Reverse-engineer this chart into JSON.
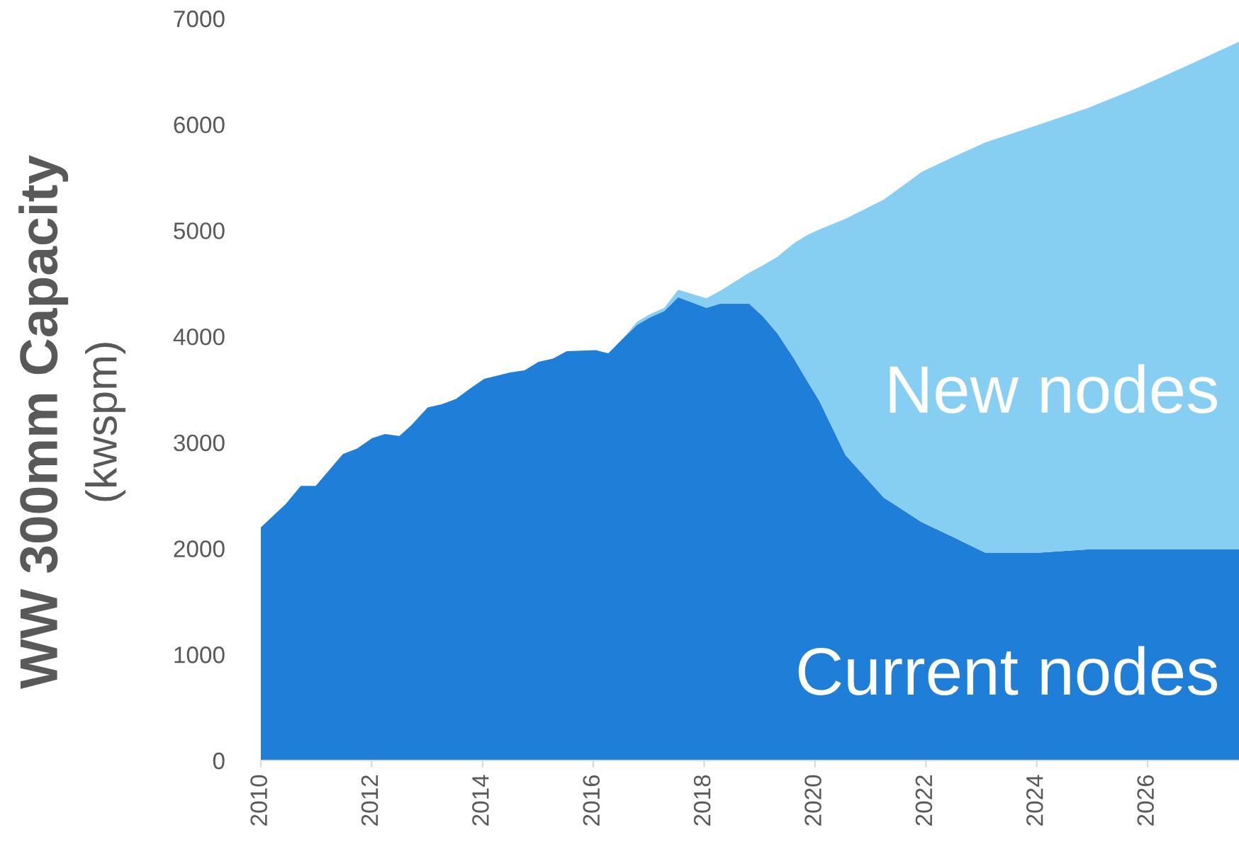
{
  "chart_data": {
    "type": "area",
    "stacked": true,
    "ylabel": "WW 300mm Capacity\n(kwspm)",
    "x": [
      2010.0,
      2010.45,
      2010.72,
      2010.99,
      2011.48,
      2011.73,
      2012.01,
      2012.24,
      2012.5,
      2012.71,
      2013.01,
      2013.26,
      2013.52,
      2013.78,
      2014.03,
      2014.5,
      2014.76,
      2015.01,
      2015.27,
      2015.52,
      2016.04,
      2016.27,
      2016.55,
      2016.79,
      2017.02,
      2017.28,
      2017.53,
      2018.04,
      2018.29,
      2018.81,
      2019.06,
      2019.32,
      2019.62,
      2019.87,
      2020.08,
      2020.55,
      2021.24,
      2021.92,
      2022.52,
      2023.07,
      2024.05,
      2024.9,
      2025.8,
      2026.7,
      2027.65
    ],
    "series": [
      {
        "name": "Current nodes",
        "color": "#1f7ed8",
        "values": [
          2200,
          2420,
          2590,
          2590,
          2890,
          2940,
          3040,
          3080,
          3060,
          3160,
          3330,
          3360,
          3410,
          3510,
          3600,
          3660,
          3680,
          3760,
          3790,
          3860,
          3870,
          3840,
          3990,
          4110,
          4180,
          4240,
          4370,
          4270,
          4310,
          4310,
          4190,
          4030,
          3790,
          3570,
          3390,
          2880,
          2480,
          2250,
          2100,
          1960,
          1960,
          1990,
          1990,
          1990,
          1990
        ]
      },
      {
        "name": "New nodes",
        "color": "#87cef3",
        "values": [
          0,
          0,
          0,
          0,
          0,
          0,
          0,
          0,
          0,
          0,
          0,
          0,
          0,
          0,
          0,
          0,
          0,
          0,
          0,
          0,
          0,
          0,
          0,
          30,
          30,
          30,
          70,
          90,
          120,
          290,
          480,
          720,
          1090,
          1390,
          1620,
          2230,
          2810,
          3300,
          3600,
          3870,
          4040,
          4160,
          4350,
          4560,
          4790
        ]
      }
    ],
    "xlim": [
      2010,
      2027.65
    ],
    "xticks": [
      2010,
      2012,
      2014,
      2016,
      2018,
      2020,
      2022,
      2024,
      2026
    ],
    "ylim": [
      0,
      7000
    ],
    "yticks": [
      0,
      1000,
      2000,
      3000,
      4000,
      5000,
      6000,
      7000
    ],
    "grid": false,
    "legend": false
  }
}
